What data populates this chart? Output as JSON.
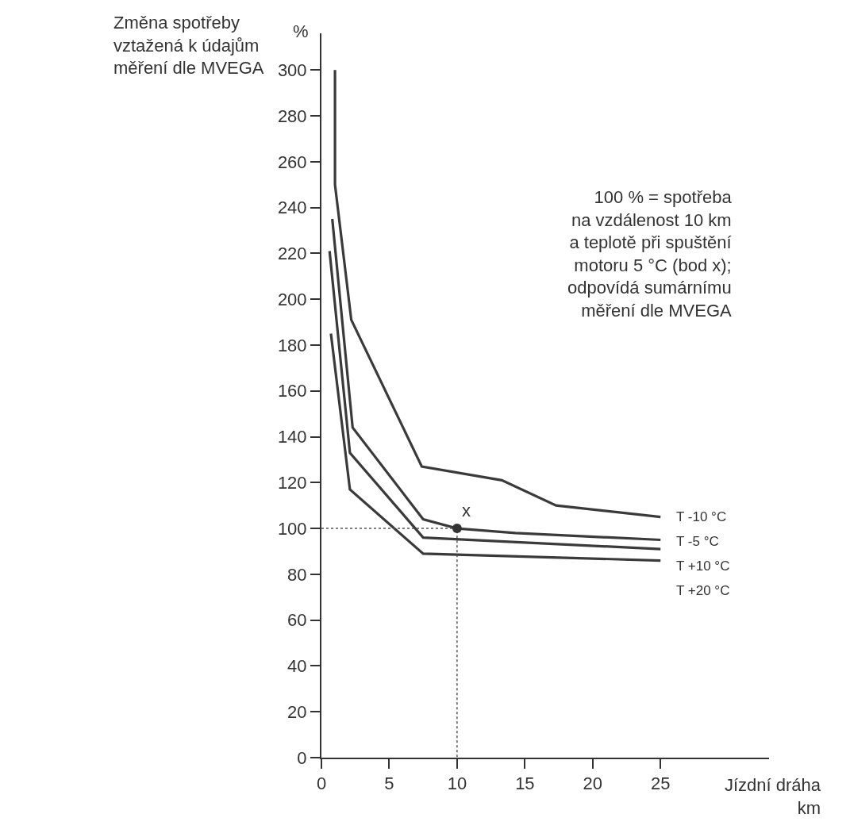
{
  "chart_data": {
    "type": "line",
    "ylabel": "Změna spotřeby\nvztažená k údajům\nměření dle MVEGA",
    "xlabel": "Jízdní dráha\nkm",
    "annotations": [
      "%",
      "100 % = spotřeba\nna vzdálenost 10 km\na teplotě při spuštění\nmotoru 5 °C (bod x);\nodpovídá sumárnímu\nměření dle MVEGA",
      {
        "text": "x",
        "x": 10,
        "y": 100
      }
    ],
    "xlim": [
      0,
      33
    ],
    "ylim": [
      0,
      316
    ],
    "xticks": [
      0,
      5,
      10,
      15,
      20,
      25
    ],
    "yticks": [
      0,
      20,
      40,
      60,
      80,
      100,
      120,
      140,
      160,
      180,
      200,
      220,
      240,
      260,
      280,
      300
    ],
    "legend": false,
    "line_style": "solid",
    "marker": "none",
    "series": [
      {
        "name": "T -10 °C",
        "color": "#3a3a3a",
        "x": [
          1.0,
          1.0,
          2.2,
          7.4,
          13.3,
          17.3,
          25
        ],
        "values": [
          300,
          250,
          191,
          127,
          121,
          110,
          105
        ]
      },
      {
        "name": "T -5 °C",
        "color": "#3a3a3a",
        "x": [
          0.8,
          2.3,
          7.5,
          10,
          14.3,
          25
        ],
        "values": [
          235,
          144,
          104,
          100,
          98,
          95
        ]
      },
      {
        "name": "T +10 °C",
        "color": "#3a3a3a",
        "x": [
          0.6,
          2.1,
          7.5,
          25
        ],
        "values": [
          221,
          133,
          96,
          91
        ]
      },
      {
        "name": "T +20 °C",
        "color": "#3a3a3a",
        "x": [
          0.7,
          2.1,
          7.5,
          25
        ],
        "values": [
          185,
          117,
          89,
          86
        ]
      },
      {
        "color": "#555555",
        "line_style": "dotted",
        "x": [
          0,
          10,
          10
        ],
        "values": [
          100,
          100,
          0
        ]
      },
      {
        "type": "scatter",
        "marker": "circle",
        "color": "#333333",
        "x": [
          10
        ],
        "values": [
          100
        ]
      }
    ]
  }
}
